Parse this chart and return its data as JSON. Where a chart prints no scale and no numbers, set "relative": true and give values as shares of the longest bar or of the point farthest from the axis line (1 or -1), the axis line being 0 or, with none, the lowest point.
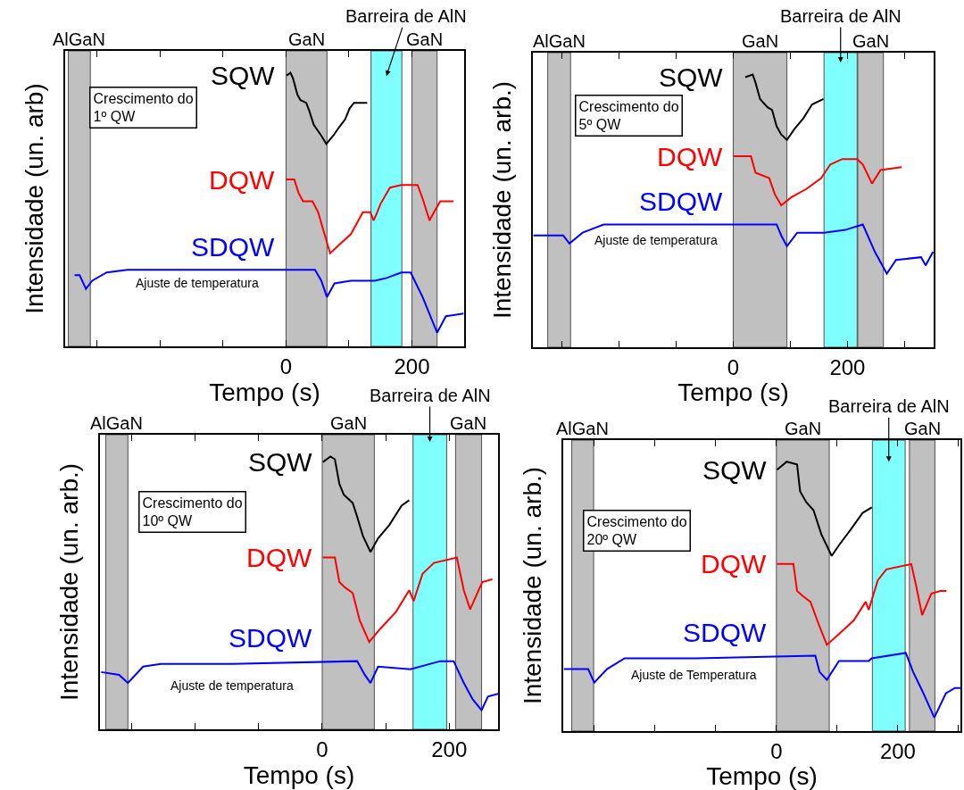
{
  "chart_data": [
    {
      "type": "line",
      "relative": true,
      "xlabel": "Tempo (s)",
      "ylabel": "Intensidade (un. arb)",
      "xlim": [
        -351,
        283
      ],
      "xticks": [
        {
          "value": -300,
          "label": null
        },
        {
          "value": -200,
          "label": null
        },
        {
          "value": -100,
          "label": null
        },
        0,
        {
          "value": 100,
          "label": null
        },
        200
      ],
      "bands": [
        {
          "axis": "x",
          "from": -346,
          "to": -311,
          "label": "AlGaN",
          "color": "#c0c0c0"
        },
        {
          "axis": "x",
          "from": 0,
          "to": 65,
          "label": "GaN",
          "color": "#c0c0c0"
        },
        {
          "axis": "x",
          "from": 135,
          "to": 184,
          "label": "Barreira de AlN",
          "color": "#80ffff"
        },
        {
          "axis": "x",
          "from": 200,
          "to": 240,
          "label": "GaN",
          "color": "#c0c0c0"
        }
      ],
      "annotations": [
        "Crescimento do\n1º QW",
        "Ajuste de temperatura"
      ],
      "series": [
        {
          "name": "SQW",
          "color": "#000000",
          "x": [
            1,
            7,
            11,
            18,
            23,
            32,
            37,
            44,
            56,
            64,
            75,
            84,
            94,
            101,
            108,
            129
          ],
          "values": [
            0.99,
            1.0,
            0.98,
            0.92,
            0.9,
            0.89,
            0.86,
            0.81,
            0.77,
            0.74,
            0.77,
            0.8,
            0.83,
            0.87,
            0.89,
            0.89
          ]
        },
        {
          "name": "DQW",
          "color": "#ff0000",
          "x": [
            0,
            13,
            20,
            27,
            42,
            51,
            61,
            70,
            84,
            103,
            122,
            134,
            139,
            143,
            150,
            165,
            183,
            209,
            217,
            228,
            235,
            245,
            266
          ],
          "values": [
            0.61,
            0.61,
            0.56,
            0.53,
            0.53,
            0.49,
            0.41,
            0.34,
            0.37,
            0.41,
            0.49,
            0.49,
            0.46,
            0.48,
            0.52,
            0.58,
            0.59,
            0.59,
            0.54,
            0.46,
            0.49,
            0.53,
            0.53
          ]
        },
        {
          "name": "SDQW",
          "color": "#0000ff",
          "x": [
            -336,
            -328,
            -318,
            -308,
            -285,
            -252,
            -133,
            -1,
            46,
            56,
            65,
            77,
            103,
            131,
            141,
            160,
            183,
            198,
            217,
            240,
            254,
            282
          ],
          "values": [
            0.26,
            0.26,
            0.21,
            0.24,
            0.27,
            0.28,
            0.28,
            0.28,
            0.28,
            0.24,
            0.18,
            0.23,
            0.24,
            0.24,
            0.24,
            0.25,
            0.27,
            0.27,
            0.18,
            0.05,
            0.11,
            0.12
          ]
        }
      ]
    },
    {
      "type": "line",
      "relative": true,
      "xlabel": "Tempo (s)",
      "ylabel": "Intensidade (un. arb.)",
      "xlim": [
        -351,
        351
      ],
      "xticks": [
        {
          "value": -300,
          "label": null
        },
        {
          "value": -200,
          "label": null
        },
        {
          "value": -100,
          "label": null
        },
        0,
        {
          "value": 100,
          "label": null
        },
        200,
        {
          "value": 300,
          "label": null
        }
      ],
      "bands": [
        {
          "axis": "x",
          "from": -325,
          "to": -285,
          "label": "AlGaN",
          "color": "#c0c0c0"
        },
        {
          "axis": "x",
          "from": 0,
          "to": 94,
          "label": "GaN",
          "color": "#c0c0c0"
        },
        {
          "axis": "x",
          "from": 159,
          "to": 217,
          "label": "Barreira de AlN",
          "color": "#80ffff"
        },
        {
          "axis": "x",
          "from": 218,
          "to": 263,
          "label": "GaN",
          "color": "#c0c0c0"
        }
      ],
      "annotations": [
        "Crescimento do\n5º QW",
        "Ajuste de temperatura"
      ],
      "series": [
        {
          "name": "SQW",
          "color": "#000000",
          "x": [
            21,
            34,
            39,
            47,
            60,
            68,
            76,
            84,
            94,
            107,
            123,
            138,
            158
          ],
          "values": [
            0.99,
            1.0,
            0.97,
            0.91,
            0.88,
            0.87,
            0.81,
            0.78,
            0.76,
            0.8,
            0.84,
            0.89,
            0.91
          ]
        },
        {
          "name": "DQW",
          "color": "#ff0000",
          "x": [
            1,
            31,
            39,
            63,
            73,
            84,
            102,
            128,
            154,
            170,
            191,
            217,
            227,
            243,
            258,
            295
          ],
          "values": [
            0.7,
            0.7,
            0.64,
            0.62,
            0.56,
            0.52,
            0.55,
            0.58,
            0.62,
            0.67,
            0.69,
            0.69,
            0.67,
            0.6,
            0.65,
            0.66
          ]
        },
        {
          "name": "SDQW",
          "color": "#0000ff",
          "x": [
            -350,
            -298,
            -287,
            -264,
            -227,
            -117,
            76,
            84,
            94,
            112,
            144,
            159,
            196,
            227,
            248,
            269,
            285,
            329,
            337,
            350
          ],
          "values": [
            0.41,
            0.41,
            0.38,
            0.42,
            0.45,
            0.45,
            0.45,
            0.41,
            0.37,
            0.42,
            0.42,
            0.42,
            0.43,
            0.45,
            0.35,
            0.27,
            0.32,
            0.33,
            0.3,
            0.35
          ]
        }
      ]
    },
    {
      "type": "line",
      "relative": true,
      "xlabel": "Tempo (s)",
      "ylabel": "Intensidade (un. arb.)",
      "xlim": [
        -350,
        277
      ],
      "xticks": [
        {
          "value": -300,
          "label": null
        },
        {
          "value": -200,
          "label": null
        },
        {
          "value": -100,
          "label": null
        },
        0,
        {
          "value": 100,
          "label": null
        },
        200
      ],
      "bands": [
        {
          "axis": "x",
          "from": -341,
          "to": -306,
          "label": "AlGaN",
          "color": "#c0c0c0"
        },
        {
          "axis": "x",
          "from": 0,
          "to": 82,
          "label": "GaN",
          "color": "#c0c0c0"
        },
        {
          "axis": "x",
          "from": 143,
          "to": 196,
          "label": "Barreira de AlN",
          "color": "#80ffff"
        },
        {
          "axis": "x",
          "from": 210,
          "to": 251,
          "label": "GaN",
          "color": "#c0c0c0"
        }
      ],
      "annotations": [
        "Crescimento do\n10º QW",
        "Ajuste de temperatura"
      ],
      "series": [
        {
          "name": "SQW",
          "color": "#000000",
          "x": [
            1,
            13,
            20,
            27,
            34,
            48,
            55,
            64,
            76,
            88,
            106,
            125,
            137
          ],
          "values": [
            0.98,
            1.0,
            0.99,
            0.9,
            0.86,
            0.83,
            0.78,
            0.71,
            0.65,
            0.7,
            0.75,
            0.82,
            0.84
          ]
        },
        {
          "name": "DQW",
          "color": "#ff0000",
          "x": [
            1,
            20,
            27,
            36,
            48,
            59,
            74,
            92,
            116,
            137,
            144,
            158,
            176,
            212,
            223,
            233,
            252,
            268
          ],
          "values": [
            0.63,
            0.63,
            0.54,
            0.52,
            0.5,
            0.4,
            0.32,
            0.37,
            0.43,
            0.51,
            0.47,
            0.57,
            0.61,
            0.63,
            0.51,
            0.44,
            0.54,
            0.55
          ]
        },
        {
          "name": "SDQW",
          "color": "#0000ff",
          "x": [
            -348,
            -320,
            -306,
            -282,
            -254,
            -142,
            55,
            67,
            76,
            88,
            139,
            186,
            207,
            223,
            237,
            251,
            261,
            277
          ],
          "values": [
            0.21,
            0.2,
            0.17,
            0.23,
            0.24,
            0.24,
            0.25,
            0.2,
            0.17,
            0.23,
            0.22,
            0.25,
            0.25,
            0.17,
            0.11,
            0.07,
            0.12,
            0.13
          ]
        }
      ]
    },
    {
      "type": "line",
      "relative": true,
      "xlabel": "Tempo (s)",
      "ylabel": "Intensidade (un. arb.)",
      "xlim": [
        -351,
        303
      ],
      "xticks": [
        {
          "value": -300,
          "label": null
        },
        {
          "value": -200,
          "label": null
        },
        {
          "value": -100,
          "label": null
        },
        0,
        {
          "value": 100,
          "label": null
        },
        200,
        {
          "value": 300,
          "label": null
        }
      ],
      "bands": [
        {
          "axis": "x",
          "from": -337,
          "to": -301,
          "label": "AlGaN",
          "color": "#c0c0c0"
        },
        {
          "axis": "x",
          "from": 0,
          "to": 87,
          "label": "GaN",
          "color": "#c0c0c0"
        },
        {
          "axis": "x",
          "from": 158,
          "to": 212,
          "label": "Barreira de AlN",
          "color": "#80ffff"
        },
        {
          "axis": "x",
          "from": 219,
          "to": 261,
          "label": "GaN",
          "color": "#c0c0c0"
        }
      ],
      "annotations": [
        "Crescimento do\n20º QW",
        "Ajuste de Temperatura"
      ],
      "series": [
        {
          "name": "SQW",
          "color": "#000000",
          "x": [
            1,
            17,
            34,
            39,
            49,
            61,
            74,
            91,
            103,
            123,
            142,
            157
          ],
          "values": [
            0.97,
            1.0,
            0.99,
            0.89,
            0.85,
            0.82,
            0.73,
            0.65,
            0.69,
            0.75,
            0.81,
            0.83
          ]
        },
        {
          "name": "DQW",
          "color": "#ff0000",
          "x": [
            1,
            28,
            34,
            44,
            56,
            69,
            83,
            103,
            127,
            147,
            152,
            167,
            181,
            222,
            230,
            240,
            255,
            270,
            280
          ],
          "values": [
            0.62,
            0.62,
            0.52,
            0.5,
            0.48,
            0.4,
            0.32,
            0.36,
            0.41,
            0.48,
            0.45,
            0.56,
            0.6,
            0.62,
            0.54,
            0.43,
            0.51,
            0.52,
            0.52
          ]
        },
        {
          "name": "SDQW",
          "color": "#0000ff",
          "x": [
            -350,
            -310,
            -300,
            -279,
            -250,
            -132,
            64,
            71,
            83,
            103,
            152,
            157,
            213,
            225,
            240,
            260,
            279,
            294,
            303
          ],
          "values": [
            0.23,
            0.23,
            0.18,
            0.23,
            0.27,
            0.27,
            0.28,
            0.22,
            0.19,
            0.26,
            0.26,
            0.27,
            0.29,
            0.22,
            0.15,
            0.05,
            0.14,
            0.16,
            0.16
          ]
        }
      ]
    }
  ]
}
